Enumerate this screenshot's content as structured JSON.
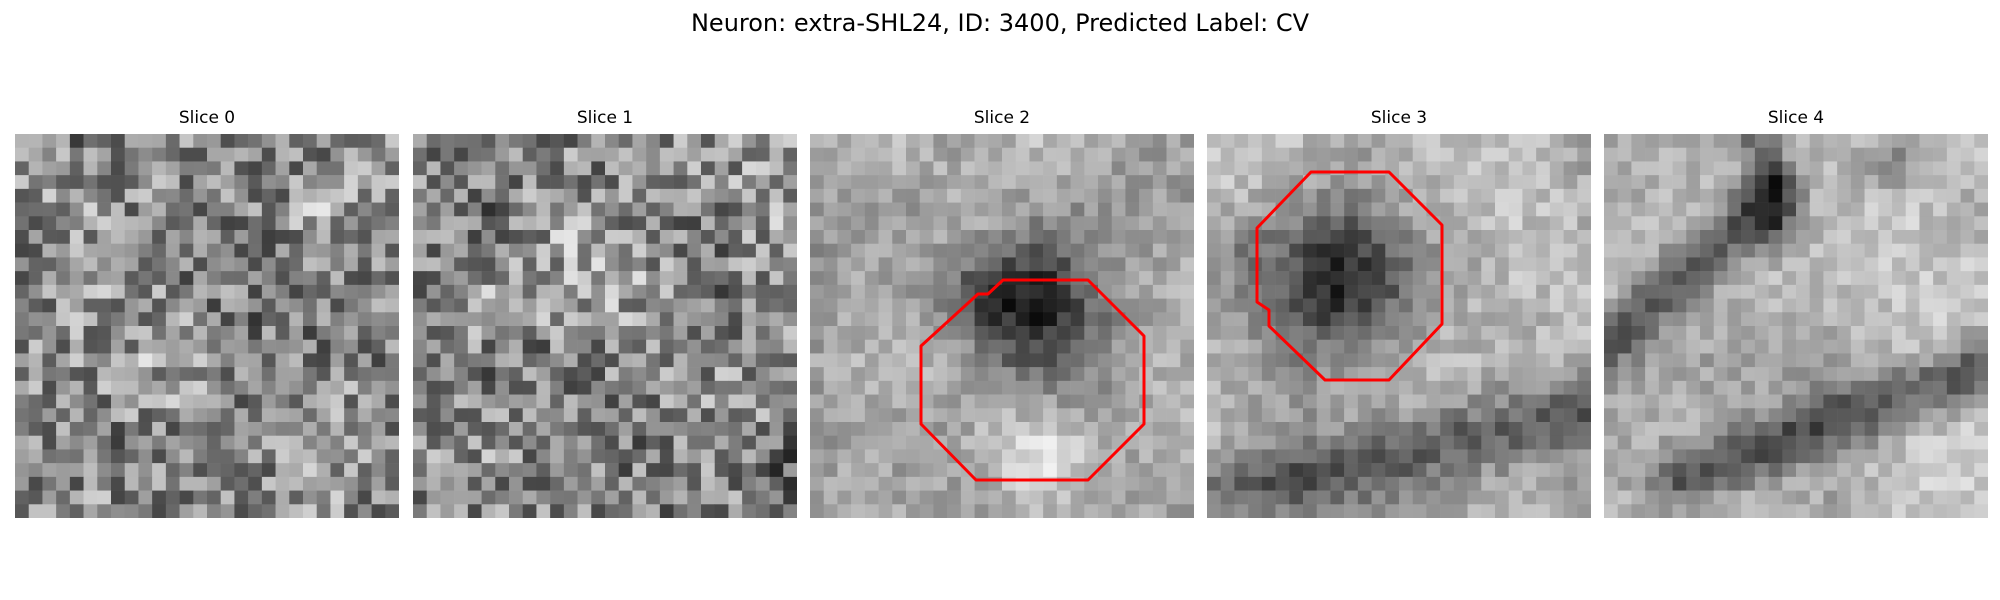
{
  "figure": {
    "title": "Neuron: extra-SHL24, ID: 3400, Predicted Label: CV"
  },
  "slices": [
    {
      "title": "Slice 0",
      "contour": false
    },
    {
      "title": "Slice 1",
      "contour": false
    },
    {
      "title": "Slice 2",
      "contour": true
    },
    {
      "title": "Slice 3",
      "contour": true
    },
    {
      "title": "Slice 4",
      "contour": false
    }
  ],
  "colors": {
    "contour": "#ff0000",
    "background": "#ffffff"
  }
}
